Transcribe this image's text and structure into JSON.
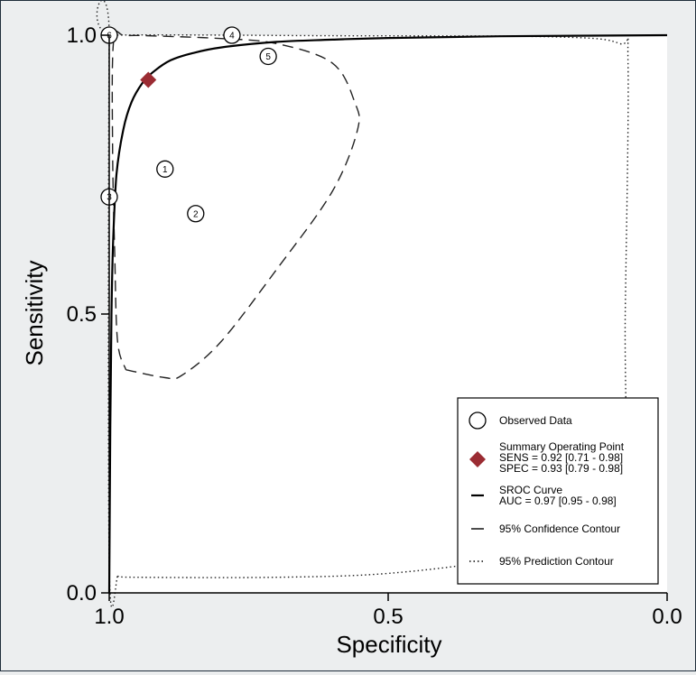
{
  "chart_data": {
    "type": "scatter",
    "title": "",
    "xlabel": "Specificity",
    "ylabel": "Sensitivity",
    "xlim": [
      1.0,
      0.0
    ],
    "ylim": [
      0.0,
      1.0
    ],
    "x_reversed": true,
    "xticks": [
      "1.0",
      "0.5",
      "0.0"
    ],
    "yticks": [
      "0.0",
      "0.5",
      "1.0"
    ],
    "grid": false,
    "legend_position": "bottom-right",
    "observed_data": [
      {
        "label": "1",
        "specificity": 0.9,
        "sensitivity": 0.76
      },
      {
        "label": "2",
        "specificity": 0.845,
        "sensitivity": 0.68
      },
      {
        "label": "3",
        "specificity": 1.0,
        "sensitivity": 0.71
      },
      {
        "label": "4",
        "specificity": 0.78,
        "sensitivity": 1.0
      },
      {
        "label": "5",
        "specificity": 0.715,
        "sensitivity": 0.962
      },
      {
        "label": "6",
        "specificity": 1.0,
        "sensitivity": 1.0
      }
    ],
    "summary_point": {
      "specificity": 0.93,
      "sensitivity": 0.92,
      "color": "#9b2c33"
    },
    "sroc_curve": [
      [
        1.0,
        0.0
      ],
      [
        0.998,
        0.3
      ],
      [
        0.996,
        0.5
      ],
      [
        0.993,
        0.63
      ],
      [
        0.987,
        0.75
      ],
      [
        0.975,
        0.83
      ],
      [
        0.96,
        0.88
      ],
      [
        0.94,
        0.915
      ],
      [
        0.92,
        0.935
      ],
      [
        0.89,
        0.955
      ],
      [
        0.85,
        0.968
      ],
      [
        0.8,
        0.978
      ],
      [
        0.7,
        0.988
      ],
      [
        0.6,
        0.992
      ],
      [
        0.5,
        0.995
      ],
      [
        0.3,
        0.998
      ],
      [
        0.0,
        1.0
      ]
    ],
    "confidence_contour": [
      [
        0.97,
        0.4
      ],
      [
        0.9,
        0.386
      ],
      [
        0.87,
        0.39
      ],
      [
        0.8,
        0.45
      ],
      [
        0.7,
        0.58
      ],
      [
        0.6,
        0.72
      ],
      [
        0.555,
        0.83
      ],
      [
        0.56,
        0.88
      ],
      [
        0.6,
        0.95
      ],
      [
        0.7,
        0.985
      ],
      [
        0.8,
        0.994
      ],
      [
        0.9,
        0.998
      ],
      [
        0.97,
        0.999
      ],
      [
        0.992,
        0.99
      ],
      [
        0.994,
        0.8
      ],
      [
        0.99,
        0.6
      ],
      [
        0.985,
        0.45
      ],
      [
        0.97,
        0.4
      ]
    ],
    "prediction_contour": [
      [
        0.985,
        0.03
      ],
      [
        0.95,
        0.028
      ],
      [
        0.7,
        0.028
      ],
      [
        0.5,
        0.035
      ],
      [
        0.3,
        0.06
      ],
      [
        0.15,
        0.1
      ],
      [
        0.08,
        0.15
      ],
      [
        0.075,
        0.5
      ],
      [
        0.07,
        0.95
      ],
      [
        0.085,
        0.985
      ],
      [
        0.2,
        0.997
      ],
      [
        0.6,
        0.999
      ],
      [
        0.99,
        1.0
      ],
      [
        1.0,
        0.99
      ],
      [
        1.0,
        0.05
      ],
      [
        0.985,
        0.03
      ]
    ],
    "legend": [
      {
        "key": "observed",
        "lines": [
          "Observed Data"
        ]
      },
      {
        "key": "summary",
        "lines": [
          "Summary Operating Point",
          "SENS = 0.92 [0.71 - 0.98]",
          "SPEC = 0.93 [0.79 - 0.98]"
        ]
      },
      {
        "key": "sroc",
        "lines": [
          "SROC Curve",
          "AUC = 0.97 [0.95 - 0.98]"
        ]
      },
      {
        "key": "confidence",
        "lines": [
          "95% Confidence Contour"
        ]
      },
      {
        "key": "prediction",
        "lines": [
          "95% Prediction Contour"
        ]
      }
    ]
  }
}
